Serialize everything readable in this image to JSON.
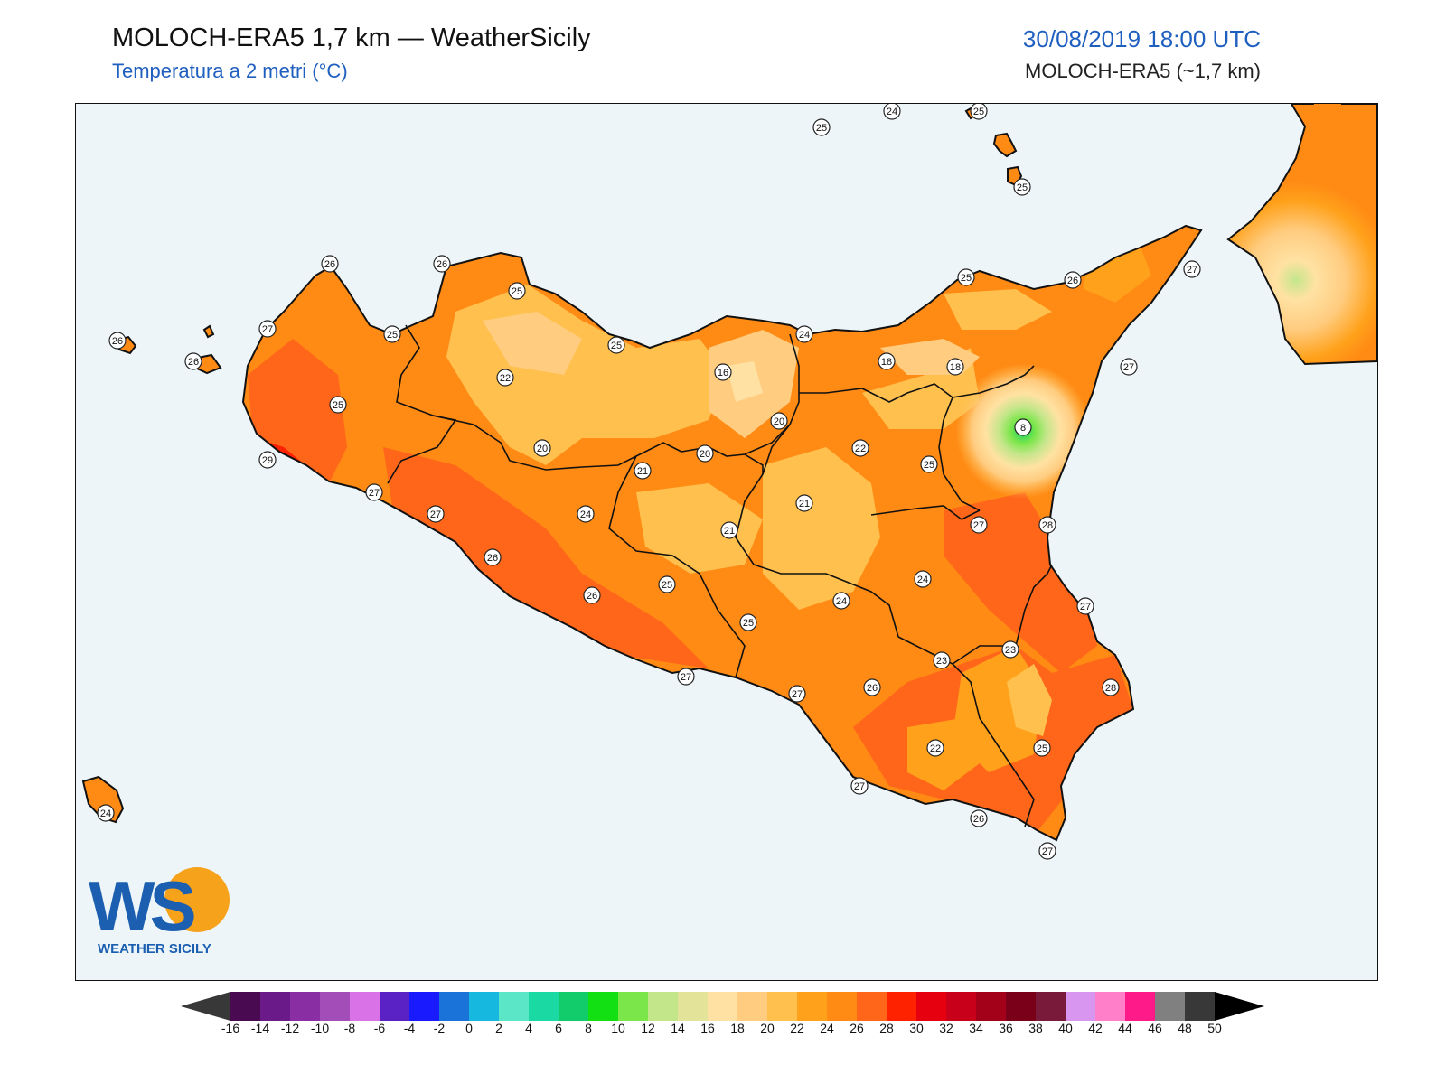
{
  "header": {
    "title": "MOLOCH-ERA5 1,7 km — WeatherSicily",
    "subtitle": "Temperatura a 2 metri (°C)",
    "datetime": "30/08/2019 18:00 UTC",
    "model": "MOLOCH-ERA5 (~1,7 km)"
  },
  "logo": {
    "initials": "WS",
    "name": "WEATHER SICILY"
  },
  "colors": {
    "sea": "#edf5f9",
    "coastline": "#111111",
    "label_bg": "#ffffff"
  },
  "colorbar": {
    "ticks": [
      "-16",
      "-14",
      "-12",
      "-10",
      "-8",
      "-6",
      "-4",
      "-2",
      "0",
      "2",
      "4",
      "6",
      "8",
      "10",
      "12",
      "14",
      "16",
      "18",
      "20",
      "22",
      "24",
      "26",
      "28",
      "30",
      "32",
      "34",
      "36",
      "38",
      "40",
      "42",
      "44",
      "46",
      "48",
      "50"
    ],
    "colors": [
      "#4a0a52",
      "#6b1a8a",
      "#8a2ea3",
      "#a34db8",
      "#d972e6",
      "#5a22c4",
      "#1a1aff",
      "#1a73d9",
      "#16b8e0",
      "#5ce6c8",
      "#1ad9a3",
      "#12cc6b",
      "#12e012",
      "#7ae64a",
      "#c4e68a",
      "#e3e39a",
      "#ffe2a3",
      "#ffcc80",
      "#ffc04d",
      "#ffa11a",
      "#ff8a14",
      "#ff6619",
      "#ff2200",
      "#e6000f",
      "#c8001a",
      "#a3001a",
      "#7a001a",
      "#7a1a3a",
      "#d996f0",
      "#ff80c8",
      "#ff1a8a",
      "#808080",
      "#383838"
    ]
  },
  "map_labels": [
    {
      "value": "25"
    },
    {
      "value": "24"
    },
    {
      "value": "25"
    },
    {
      "value": "25"
    },
    {
      "value": "26"
    },
    {
      "value": "26"
    },
    {
      "value": "25"
    },
    {
      "value": "27"
    },
    {
      "value": "25"
    },
    {
      "value": "26"
    },
    {
      "value": "26"
    },
    {
      "value": "25"
    },
    {
      "value": "22"
    },
    {
      "value": "25"
    },
    {
      "value": "24"
    },
    {
      "value": "16"
    },
    {
      "value": "18"
    },
    {
      "value": "18"
    },
    {
      "value": "25"
    },
    {
      "value": "26"
    },
    {
      "value": "27"
    },
    {
      "value": "27"
    },
    {
      "value": "8"
    },
    {
      "value": "25"
    },
    {
      "value": "20"
    },
    {
      "value": "20"
    },
    {
      "value": "20"
    },
    {
      "value": "22"
    },
    {
      "value": "21"
    },
    {
      "value": "29"
    },
    {
      "value": "27"
    },
    {
      "value": "27"
    },
    {
      "value": "24"
    },
    {
      "value": "21"
    },
    {
      "value": "21"
    },
    {
      "value": "27"
    },
    {
      "value": "28"
    },
    {
      "value": "26"
    },
    {
      "value": "24"
    },
    {
      "value": "25"
    },
    {
      "value": "26"
    },
    {
      "value": "24"
    },
    {
      "value": "27"
    },
    {
      "value": "25"
    },
    {
      "value": "23"
    },
    {
      "value": "23"
    },
    {
      "value": "27"
    },
    {
      "value": "27"
    },
    {
      "value": "26"
    },
    {
      "value": "28"
    },
    {
      "value": "22"
    },
    {
      "value": "25"
    },
    {
      "value": "27"
    },
    {
      "value": "26"
    },
    {
      "value": "27"
    },
    {
      "value": "24"
    }
  ]
}
